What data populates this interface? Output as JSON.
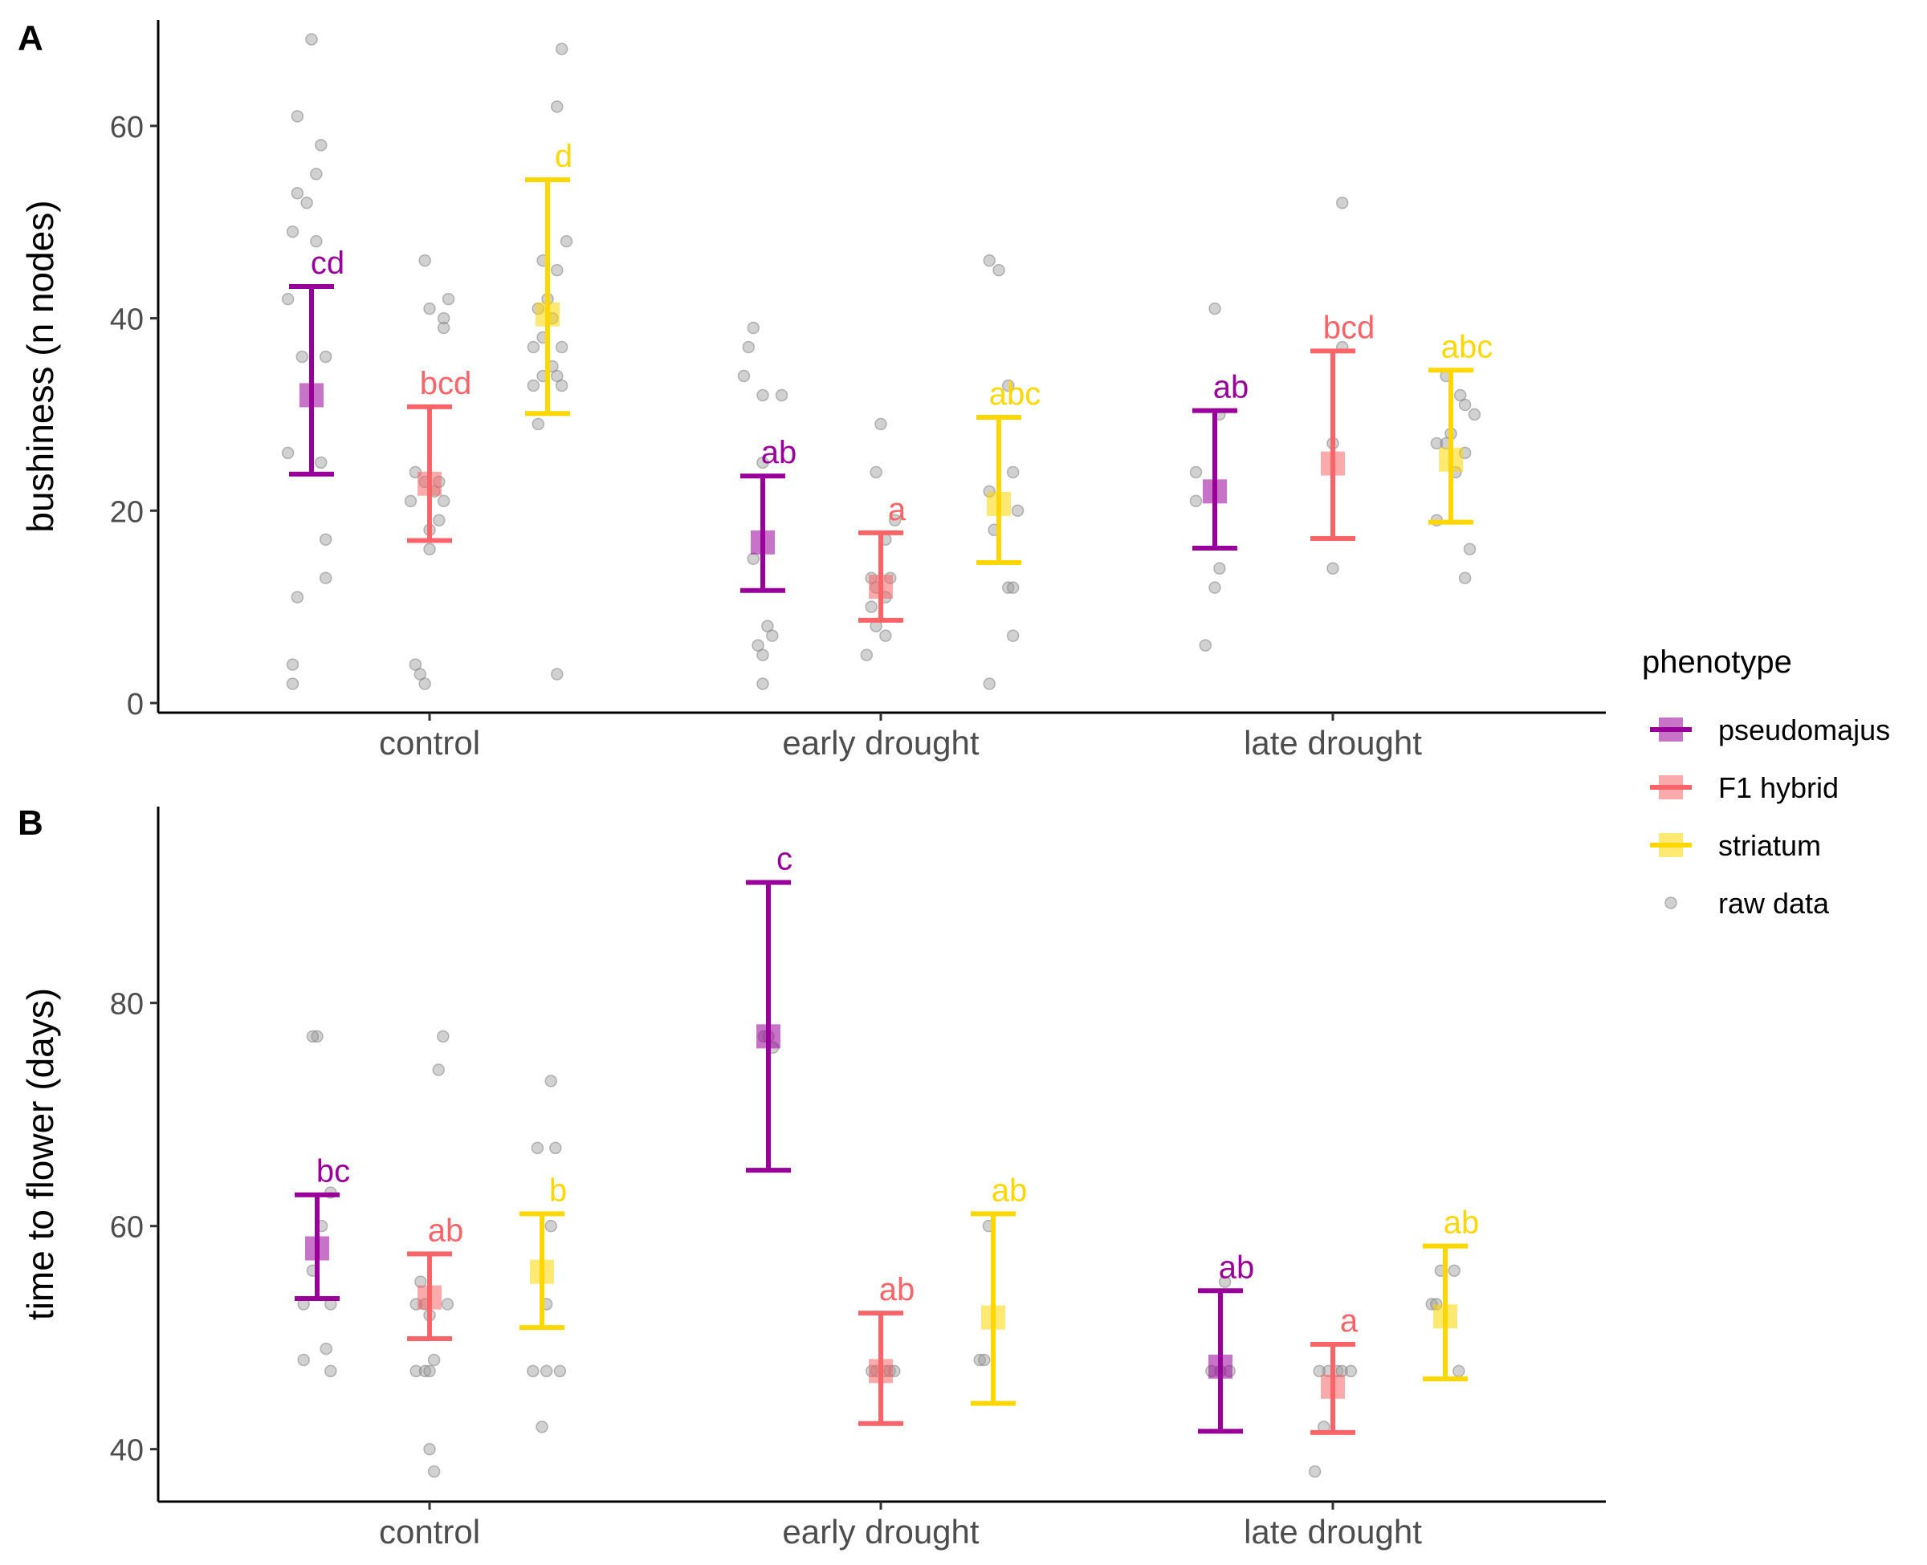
{
  "legend": {
    "title": "phenotype",
    "items": [
      {
        "label": "pseudomajus",
        "color": "#990099",
        "kind": "group"
      },
      {
        "label": "F1 hybrid",
        "color": "#F86468",
        "kind": "group"
      },
      {
        "label": "striatum",
        "color": "#FFD700",
        "kind": "group"
      },
      {
        "label": "raw data",
        "color": "#b5b5b5",
        "kind": "raw"
      }
    ]
  },
  "chart_data": [
    {
      "type": "scatter",
      "panel": "A",
      "ylabel": "bushiness (n nodes)",
      "categories": [
        "control",
        "early drought",
        "late drought"
      ],
      "yticks": [
        0,
        20,
        40,
        60
      ],
      "ylim": [
        -1,
        71
      ],
      "series": [
        {
          "name": "pseudomajus",
          "color": "#990099",
          "mean": [
            32,
            16.7,
            22
          ],
          "lower": [
            23.8,
            11.7,
            16.1
          ],
          "upper": [
            43.3,
            23.6,
            30.4
          ],
          "letters": [
            "cd",
            "ab",
            "ab"
          ]
        },
        {
          "name": "F1 hybrid",
          "color": "#F86468",
          "mean": [
            22.8,
            12.1,
            24.9
          ],
          "lower": [
            16.9,
            8.6,
            17.1
          ],
          "upper": [
            30.8,
            17.7,
            36.6
          ],
          "letters": [
            "bcd",
            "a",
            "bcd"
          ]
        },
        {
          "name": "striatum",
          "color": "#FFD700",
          "mean": [
            40.4,
            20.7,
            25.3
          ],
          "lower": [
            30.1,
            14.6,
            18.8
          ],
          "upper": [
            54.4,
            29.7,
            34.6
          ],
          "letters": [
            "d",
            "abc",
            "abc"
          ]
        }
      ],
      "raw": [
        [
          [
            -0.25,
            69
          ],
          [
            -0.28,
            61
          ],
          [
            -0.23,
            58
          ],
          [
            -0.24,
            55
          ],
          [
            -0.28,
            53
          ],
          [
            -0.26,
            52
          ],
          [
            -0.29,
            49
          ],
          [
            -0.24,
            48
          ],
          [
            -0.3,
            42
          ],
          [
            -0.27,
            36
          ],
          [
            -0.22,
            36
          ],
          [
            -0.3,
            26
          ],
          [
            -0.23,
            25
          ],
          [
            -0.22,
            17
          ],
          [
            -0.22,
            13
          ],
          [
            -0.28,
            11
          ],
          [
            -0.29,
            4
          ],
          [
            -0.29,
            2
          ]
        ],
        [
          [
            -0.01,
            46
          ],
          [
            0.04,
            42
          ],
          [
            0,
            41
          ],
          [
            0.03,
            40
          ],
          [
            0.03,
            39
          ],
          [
            -0.03,
            24
          ],
          [
            -0.04,
            21
          ],
          [
            0.03,
            21
          ],
          [
            0.02,
            23
          ],
          [
            -0.01,
            23
          ],
          [
            0.01,
            22
          ],
          [
            0,
            18
          ],
          [
            0.02,
            19
          ],
          [
            0,
            16
          ],
          [
            -0.03,
            4
          ],
          [
            -0.02,
            3
          ],
          [
            -0.01,
            2
          ]
        ],
        [
          [
            0.28,
            68
          ],
          [
            0.27,
            62
          ],
          [
            0.29,
            48
          ],
          [
            0.24,
            46
          ],
          [
            0.27,
            45
          ],
          [
            0.25,
            42
          ],
          [
            0.23,
            41
          ],
          [
            0.26,
            40
          ],
          [
            0.24,
            38
          ],
          [
            0.22,
            37
          ],
          [
            0.28,
            37
          ],
          [
            0.26,
            35
          ],
          [
            0.27,
            34
          ],
          [
            0.24,
            34
          ],
          [
            0.28,
            33
          ],
          [
            0.22,
            33
          ],
          [
            0.23,
            29
          ],
          [
            0.27,
            3
          ]
        ],
        [
          [
            -0.27,
            39
          ],
          [
            -0.28,
            37
          ],
          [
            -0.29,
            34
          ],
          [
            -0.25,
            32
          ],
          [
            -0.21,
            32
          ],
          [
            -0.25,
            25
          ],
          [
            -0.27,
            15
          ],
          [
            -0.24,
            8
          ],
          [
            -0.23,
            7
          ],
          [
            -0.26,
            6
          ],
          [
            -0.25,
            5
          ],
          [
            -0.25,
            2
          ]
        ],
        [
          [
            0,
            29
          ],
          [
            -0.01,
            24
          ],
          [
            0.03,
            19
          ],
          [
            0.01,
            17
          ],
          [
            -0.02,
            13
          ],
          [
            0.02,
            13
          ],
          [
            -0.01,
            12
          ],
          [
            0.01,
            11
          ],
          [
            -0.02,
            10
          ],
          [
            -0.01,
            8
          ],
          [
            0.01,
            7
          ],
          [
            -0.03,
            5
          ]
        ],
        [
          [
            0.23,
            46
          ],
          [
            0.25,
            45
          ],
          [
            0.27,
            33
          ],
          [
            0.28,
            24
          ],
          [
            0.23,
            22
          ],
          [
            0.29,
            20
          ],
          [
            0.24,
            18
          ],
          [
            0.27,
            12
          ],
          [
            0.28,
            12
          ],
          [
            0.28,
            7
          ],
          [
            0.23,
            2
          ]
        ],
        [
          [
            0.02,
            52
          ],
          [
            -0.25,
            41
          ],
          [
            -0.29,
            24
          ],
          [
            -0.29,
            21
          ],
          [
            -0.24,
            30
          ],
          [
            -0.24,
            14
          ],
          [
            -0.25,
            12
          ],
          [
            -0.27,
            6
          ]
        ],
        [
          [
            0.02,
            37
          ],
          [
            0,
            27
          ],
          [
            0,
            14
          ]
        ],
        [
          [
            0.24,
            34
          ],
          [
            0.27,
            32
          ],
          [
            0.28,
            31
          ],
          [
            0.3,
            30
          ],
          [
            0.25,
            28
          ],
          [
            0.24,
            27
          ],
          [
            0.28,
            26
          ],
          [
            0.22,
            27
          ],
          [
            0.26,
            24
          ],
          [
            0.22,
            19
          ],
          [
            0.29,
            16
          ],
          [
            0.28,
            13
          ]
        ]
      ]
    },
    {
      "type": "scatter",
      "panel": "B",
      "ylabel": "time to flower (days)",
      "categories": [
        "control",
        "early drought",
        "late drought"
      ],
      "yticks": [
        40,
        60,
        80
      ],
      "ylim": [
        35.3,
        97.6
      ],
      "series": [
        {
          "name": "pseudomajus",
          "color": "#990099",
          "mean": [
            58,
            77,
            47.4
          ],
          "lower": [
            53.5,
            65,
            41.6
          ],
          "upper": [
            62.8,
            90.8,
            54.2
          ],
          "letters": [
            "bc",
            "c",
            "ab"
          ]
        },
        {
          "name": "F1 hybrid",
          "color": "#F86468",
          "mean": [
            53.6,
            47,
            45.6
          ],
          "lower": [
            49.9,
            42.3,
            41.5
          ],
          "upper": [
            57.5,
            52.2,
            49.4
          ],
          "letters": [
            "ab",
            "ab",
            "a"
          ]
        },
        {
          "name": "striatum",
          "color": "#FFD700",
          "mean": [
            55.9,
            51.8,
            51.9
          ],
          "lower": [
            50.9,
            44.1,
            46.3
          ],
          "upper": [
            61.1,
            61.1,
            58.2
          ],
          "letters": [
            "b",
            "ab",
            "ab"
          ]
        }
      ],
      "raw": [
        [
          [
            -0.25,
            77
          ],
          [
            -0.26,
            77
          ],
          [
            -0.22,
            63
          ],
          [
            -0.24,
            60
          ],
          [
            -0.26,
            56
          ],
          [
            -0.28,
            53
          ],
          [
            -0.22,
            53
          ],
          [
            -0.23,
            49
          ],
          [
            -0.28,
            48
          ],
          [
            -0.22,
            47
          ]
        ],
        [
          [
            0.03,
            77
          ],
          [
            0.02,
            74
          ],
          [
            -0.03,
            53
          ],
          [
            -0.01,
            53
          ],
          [
            0.04,
            53
          ],
          [
            -0.02,
            55
          ],
          [
            0,
            52
          ],
          [
            0.01,
            48
          ],
          [
            -0.03,
            47
          ],
          [
            -0.01,
            47
          ],
          [
            0,
            47
          ],
          [
            0,
            40
          ],
          [
            0.01,
            38
          ]
        ],
        [
          [
            0.27,
            73
          ],
          [
            0.24,
            67
          ],
          [
            0.28,
            67
          ],
          [
            0.27,
            60
          ],
          [
            0.26,
            53
          ],
          [
            0.23,
            47
          ],
          [
            0.26,
            47
          ],
          [
            0.29,
            47
          ],
          [
            0.25,
            42
          ]
        ],
        [
          [
            -0.25,
            77
          ],
          [
            -0.26,
            77
          ],
          [
            -0.24,
            76
          ]
        ],
        [
          [
            -0.01,
            47
          ],
          [
            0.01,
            47
          ],
          [
            0.02,
            47
          ],
          [
            0.03,
            47
          ],
          [
            -0.02,
            47
          ]
        ],
        [
          [
            0.24,
            60
          ],
          [
            0.22,
            48
          ],
          [
            0.23,
            48
          ]
        ],
        [
          [
            -0.24,
            55
          ],
          [
            -0.27,
            47
          ],
          [
            -0.25,
            47
          ],
          [
            -0.23,
            47
          ]
        ],
        [
          [
            -0.01,
            47
          ],
          [
            0.01,
            47
          ],
          [
            0.02,
            47
          ],
          [
            0.04,
            47
          ],
          [
            -0.03,
            47
          ],
          [
            -0.02,
            42
          ],
          [
            -0.04,
            38
          ]
        ],
        [
          [
            0.27,
            56
          ],
          [
            0.24,
            56
          ],
          [
            0.22,
            53
          ],
          [
            0.23,
            53
          ],
          [
            0.28,
            47
          ]
        ]
      ]
    }
  ]
}
